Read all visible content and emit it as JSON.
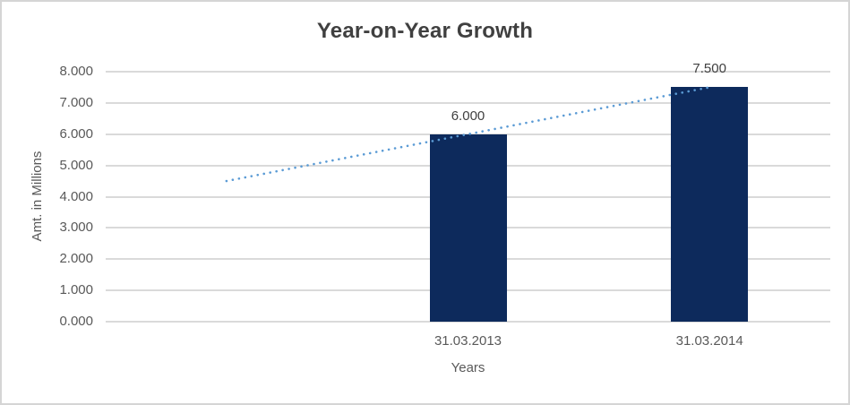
{
  "window": {
    "background_color": "#FFFFFF",
    "frame_border_color": "#D5D5D5"
  },
  "chart_data": {
    "type": "bar",
    "title": "Year-on-Year Growth",
    "categories": [
      "31.03.2013",
      "31.03.2014"
    ],
    "values": [
      6.0,
      7.5
    ],
    "data_labels": [
      "6.000",
      "7.500"
    ],
    "xlabel": "Years",
    "ylabel": "Amt. in Millions",
    "ylim": [
      0,
      8
    ],
    "yticks": [
      0,
      1,
      2,
      3,
      4,
      5,
      6,
      7,
      8
    ],
    "ytick_labels": [
      "0.000",
      "1.000",
      "2.000",
      "3.000",
      "4.000",
      "5.000",
      "6.000",
      "7.000",
      "8.000"
    ],
    "grid": true,
    "legend": "none",
    "bar_color": "#0D2A5C",
    "grid_color": "#DADADA",
    "title_color": "#404040",
    "axis_text_color": "#595959",
    "trendline": {
      "style": "dotted",
      "color": "#5B9BD5",
      "slots": 3,
      "start_slot": 0,
      "start_value": 4.5,
      "end_slot": 2,
      "end_value": 7.5
    }
  }
}
